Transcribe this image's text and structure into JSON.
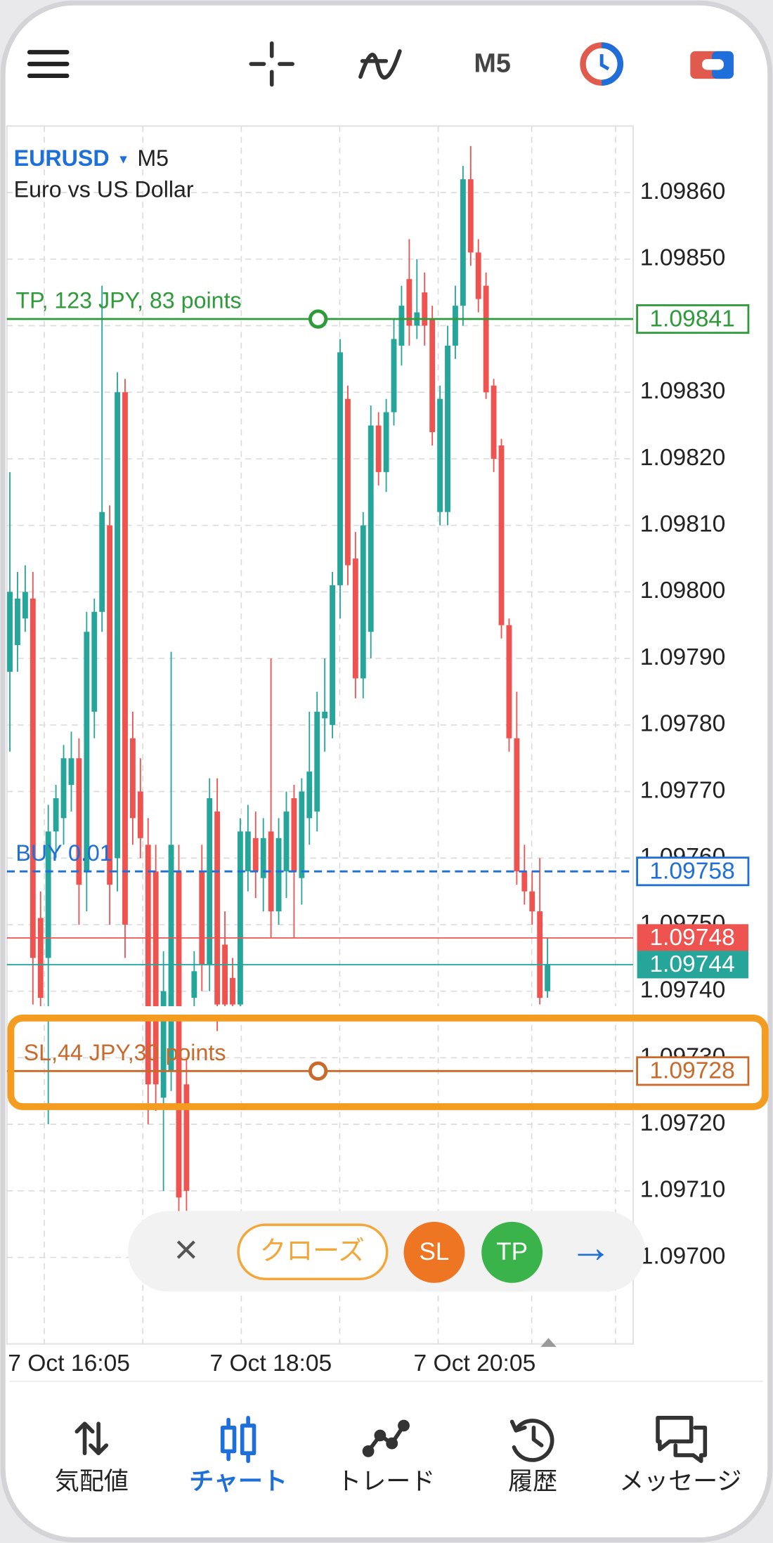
{
  "toolbar": {
    "timeframe": "M5"
  },
  "symbol": {
    "name": "EURUSD",
    "arrow": "▾",
    "timeframe": "M5",
    "description": "Euro vs US Dollar"
  },
  "chart_data": {
    "type": "candlestick",
    "open": [
      1.09788,
      1.09792,
      1.09796,
      1.09799,
      1.09751,
      1.09745,
      1.09764,
      1.09766,
      1.09771,
      1.09775,
      1.09758,
      1.09782,
      1.09797,
      1.0981,
      1.0976,
      1.0983,
      1.09778,
      1.0977,
      1.09762,
      1.09758,
      1.09724,
      1.09728,
      1.09758,
      1.09726,
      1.09739,
      1.09758,
      1.09744,
      1.09767,
      1.09747,
      1.09742,
      1.09738,
      1.09758,
      1.09763,
      1.09757,
      1.09764,
      1.09752,
      1.09758,
      1.09769,
      1.09757,
      1.09766,
      1.09767,
      1.09781,
      1.0978,
      1.09801,
      1.09829,
      1.09805,
      1.09787,
      1.09794,
      1.09825,
      1.09818,
      1.09827,
      1.09837,
      1.09847,
      1.0984,
      1.09845,
      1.09841,
      1.09812,
      1.09812,
      1.09837,
      1.09843,
      1.09862,
      1.09851,
      1.09846,
      1.09831,
      1.09822,
      1.09795,
      1.09778,
      1.09758,
      1.09755,
      1.09752,
      1.0974
    ],
    "high": [
      1.09818,
      1.09803,
      1.09804,
      1.09803,
      1.09755,
      1.09768,
      1.09771,
      1.09777,
      1.09779,
      1.09778,
      1.09797,
      1.09799,
      1.09846,
      1.09813,
      1.09833,
      1.09832,
      1.09782,
      1.09775,
      1.09766,
      1.09762,
      1.09746,
      1.09791,
      1.09762,
      1.0973,
      1.09746,
      1.09762,
      1.09772,
      1.09772,
      1.09752,
      1.09745,
      1.09766,
      1.09768,
      1.09767,
      1.09766,
      1.0979,
      1.09766,
      1.0977,
      1.09771,
      1.09772,
      1.09782,
      1.09785,
      1.0979,
      1.09803,
      1.09838,
      1.09831,
      1.09809,
      1.09812,
      1.09828,
      1.09827,
      1.09829,
      1.09841,
      1.09846,
      1.09853,
      1.0985,
      1.09848,
      1.09843,
      1.09831,
      1.0984,
      1.09846,
      1.09864,
      1.09867,
      1.09853,
      1.09848,
      1.09832,
      1.09823,
      1.09796,
      1.09785,
      1.09762,
      1.09758,
      1.0976,
      1.09748
    ],
    "low": [
      1.09776,
      1.09788,
      1.09794,
      1.09738,
      1.09736,
      1.0972,
      1.0976,
      1.09762,
      1.09767,
      1.0975,
      1.09752,
      1.09778,
      1.09794,
      1.0975,
      1.09755,
      1.09745,
      1.09762,
      1.0976,
      1.0972,
      1.09722,
      1.0971,
      1.09725,
      1.09706,
      1.09707,
      1.09736,
      1.0974,
      1.0974,
      1.09734,
      1.09736,
      1.09736,
      1.09736,
      1.09755,
      1.09754,
      1.09752,
      1.09748,
      1.0975,
      1.09754,
      1.09748,
      1.09753,
      1.09762,
      1.09764,
      1.09776,
      1.09778,
      1.09796,
      1.09801,
      1.09784,
      1.09784,
      1.0979,
      1.09816,
      1.09815,
      1.09825,
      1.09834,
      1.09837,
      1.09838,
      1.09837,
      1.09822,
      1.0981,
      1.0981,
      1.09835,
      1.0984,
      1.09849,
      1.09842,
      1.09829,
      1.09818,
      1.09793,
      1.09776,
      1.09756,
      1.09753,
      1.0975,
      1.09738,
      1.09739
    ],
    "close": [
      1.098,
      1.09799,
      1.098,
      1.09745,
      1.09739,
      1.09764,
      1.09769,
      1.09775,
      1.09775,
      1.09756,
      1.09794,
      1.09797,
      1.09812,
      1.09756,
      1.0983,
      1.0975,
      1.09766,
      1.09763,
      1.09726,
      1.09726,
      1.0974,
      1.09762,
      1.09709,
      1.0971,
      1.09743,
      1.09744,
      1.09769,
      1.09738,
      1.09738,
      1.09738,
      1.09764,
      1.09764,
      1.09758,
      1.09763,
      1.09752,
      1.09763,
      1.09767,
      1.09758,
      1.0977,
      1.09773,
      1.09782,
      1.09782,
      1.09801,
      1.09836,
      1.09804,
      1.09787,
      1.0981,
      1.09825,
      1.09818,
      1.09827,
      1.09838,
      1.09843,
      1.0984,
      1.09842,
      1.0984,
      1.09824,
      1.09829,
      1.09837,
      1.09843,
      1.09862,
      1.09851,
      1.09844,
      1.0983,
      1.0982,
      1.09795,
      1.09778,
      1.09758,
      1.09755,
      1.09752,
      1.09739,
      1.09744
    ],
    "up_color": "#26a69a",
    "down_color": "#ef5350",
    "ylim": [
      1.09687,
      1.0987
    ],
    "yticks": [
      {
        "value": 1.097,
        "label": "1.09700"
      },
      {
        "value": 1.0971,
        "label": "1.09710"
      },
      {
        "value": 1.0972,
        "label": "1.09720"
      },
      {
        "value": 1.0973,
        "label": "1.09730"
      },
      {
        "value": 1.0974,
        "label": "1.09740"
      },
      {
        "value": 1.0975,
        "label": "1.09750"
      },
      {
        "value": 1.0976,
        "label": "1.09760"
      },
      {
        "value": 1.0977,
        "label": "1.09770"
      },
      {
        "value": 1.0978,
        "label": "1.09780"
      },
      {
        "value": 1.0979,
        "label": "1.09790"
      },
      {
        "value": 1.098,
        "label": "1.09800"
      },
      {
        "value": 1.0981,
        "label": "1.09810"
      },
      {
        "value": 1.0982,
        "label": "1.09820"
      },
      {
        "value": 1.0983,
        "label": "1.09830"
      },
      {
        "value": 1.0984,
        "label": "1.09840"
      },
      {
        "value": 1.0985,
        "label": "1.09850"
      },
      {
        "value": 1.0986,
        "label": "1.09860"
      }
    ],
    "grid": true,
    "x_labels": [
      "7 Oct 16:05",
      "7 Oct 18:05",
      "7 Oct 20:05"
    ],
    "lines": [
      {
        "label": "TP, 123 JPY, 83 points",
        "value": 1.09841,
        "color": "#2e9b3a",
        "boxed": "outline"
      },
      {
        "label": "BUY 0.01",
        "value": 1.09758,
        "color": "#1e6fd9",
        "dashed": true,
        "boxed": "outline"
      },
      {
        "value": 1.09748,
        "color": "#ef5350",
        "boxed": "fill"
      },
      {
        "value": 1.09744,
        "color": "#26a69a",
        "boxed": "fill"
      },
      {
        "label": "SL,44 JPY,30 points",
        "value": 1.09728,
        "color": "#c9692a",
        "boxed": "outline"
      }
    ]
  },
  "trade_panel": {
    "close": "×",
    "close_position": "クローズ",
    "sl": "SL",
    "tp": "TP",
    "next": "→"
  },
  "nav": {
    "items": [
      "気配値",
      "チャート",
      "トレード",
      "履歴",
      "メッセージ"
    ],
    "active": 1
  }
}
